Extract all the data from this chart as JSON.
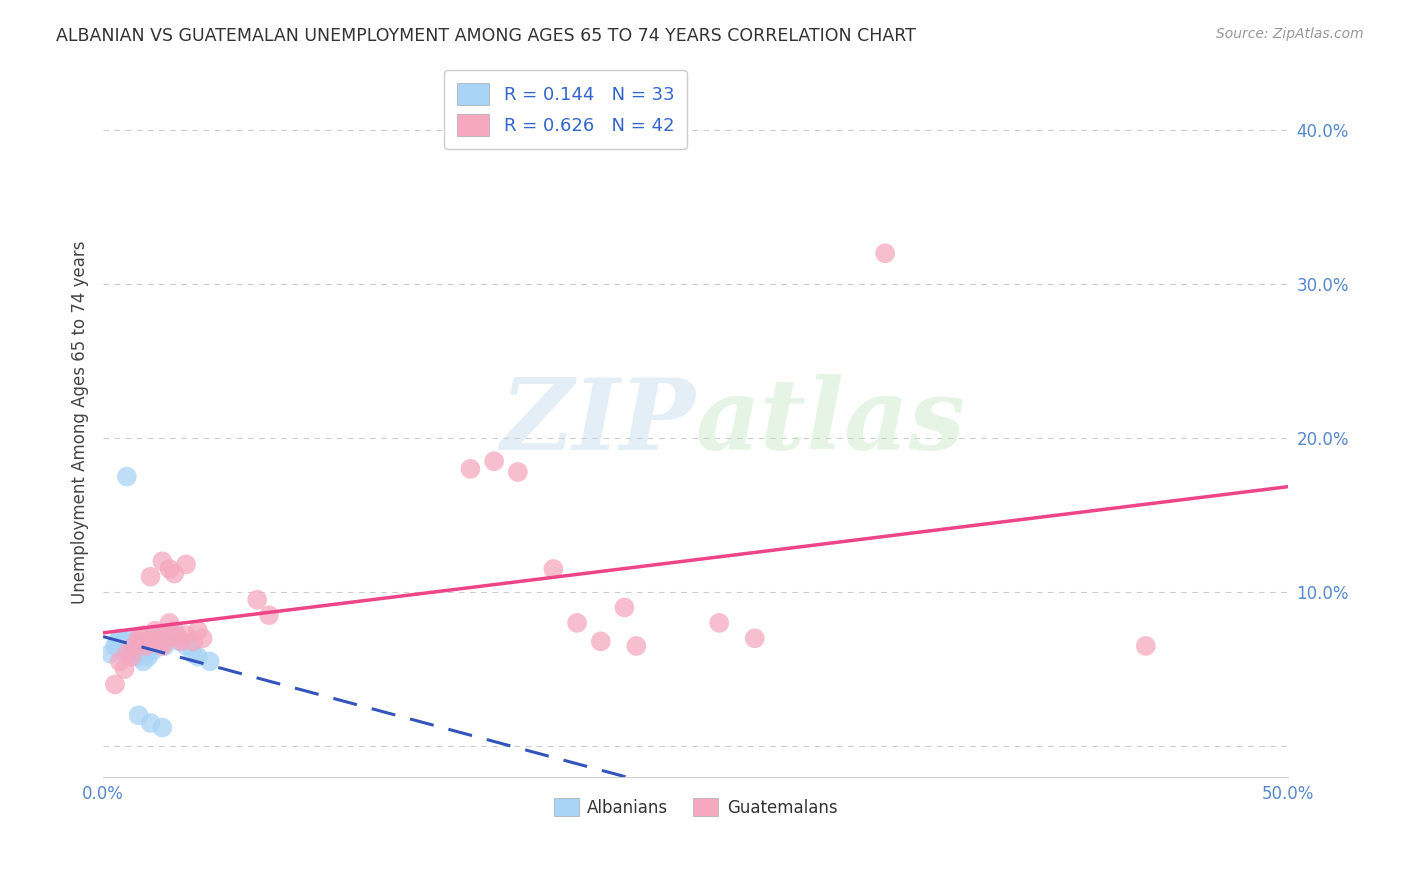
{
  "title": "ALBANIAN VS GUATEMALAN UNEMPLOYMENT AMONG AGES 65 TO 74 YEARS CORRELATION CHART",
  "source": "Source: ZipAtlas.com",
  "ylabel": "Unemployment Among Ages 65 to 74 years",
  "xlim": [
    0.0,
    0.5
  ],
  "ylim": [
    -0.02,
    0.44
  ],
  "xticks": [
    0.0,
    0.1,
    0.2,
    0.3,
    0.4,
    0.5
  ],
  "yticks": [
    0.0,
    0.1,
    0.2,
    0.3,
    0.4
  ],
  "xticklabels": [
    "0.0%",
    "",
    "",
    "",
    "",
    "50.0%"
  ],
  "yticklabels_right": [
    "",
    "10.0%",
    "20.0%",
    "30.0%",
    "40.0%"
  ],
  "albanian_color": "#a8d4f5",
  "guatemalan_color": "#f5a8c0",
  "albanian_line_color": "#3355bb",
  "guatemalan_line_color": "#ee4488",
  "albanian_R": 0.144,
  "albanian_N": 33,
  "guatemalan_R": 0.626,
  "guatemalan_N": 42,
  "background_color": "#ffffff",
  "grid_color": "#cccccc",
  "watermark_zip": "ZIP",
  "watermark_atlas": "atlas",
  "legend_label_albanian": "Albanians",
  "legend_label_guatemalan": "Guatemalans",
  "albanian_points": [
    [
      0.003,
      0.06
    ],
    [
      0.005,
      0.065
    ],
    [
      0.006,
      0.068
    ],
    [
      0.007,
      0.07
    ],
    [
      0.008,
      0.068
    ],
    [
      0.009,
      0.065
    ],
    [
      0.01,
      0.062
    ],
    [
      0.011,
      0.07
    ],
    [
      0.012,
      0.065
    ],
    [
      0.013,
      0.068
    ],
    [
      0.014,
      0.06
    ],
    [
      0.015,
      0.058
    ],
    [
      0.016,
      0.062
    ],
    [
      0.017,
      0.055
    ],
    [
      0.018,
      0.06
    ],
    [
      0.019,
      0.058
    ],
    [
      0.02,
      0.065
    ],
    [
      0.021,
      0.062
    ],
    [
      0.022,
      0.07
    ],
    [
      0.023,
      0.068
    ],
    [
      0.024,
      0.072
    ],
    [
      0.025,
      0.068
    ],
    [
      0.026,
      0.065
    ],
    [
      0.03,
      0.072
    ],
    [
      0.032,
      0.068
    ],
    [
      0.035,
      0.065
    ],
    [
      0.038,
      0.06
    ],
    [
      0.04,
      0.058
    ],
    [
      0.045,
      0.055
    ],
    [
      0.01,
      0.175
    ],
    [
      0.015,
      0.02
    ],
    [
      0.02,
      0.015
    ],
    [
      0.025,
      0.012
    ]
  ],
  "guatemalan_points": [
    [
      0.005,
      0.04
    ],
    [
      0.007,
      0.055
    ],
    [
      0.009,
      0.05
    ],
    [
      0.01,
      0.06
    ],
    [
      0.012,
      0.058
    ],
    [
      0.013,
      0.065
    ],
    [
      0.015,
      0.07
    ],
    [
      0.016,
      0.068
    ],
    [
      0.017,
      0.072
    ],
    [
      0.018,
      0.065
    ],
    [
      0.02,
      0.068
    ],
    [
      0.022,
      0.075
    ],
    [
      0.023,
      0.07
    ],
    [
      0.025,
      0.065
    ],
    [
      0.026,
      0.068
    ],
    [
      0.028,
      0.08
    ],
    [
      0.03,
      0.075
    ],
    [
      0.032,
      0.07
    ],
    [
      0.033,
      0.068
    ],
    [
      0.035,
      0.072
    ],
    [
      0.038,
      0.068
    ],
    [
      0.04,
      0.075
    ],
    [
      0.042,
      0.07
    ],
    [
      0.02,
      0.11
    ],
    [
      0.025,
      0.12
    ],
    [
      0.028,
      0.115
    ],
    [
      0.03,
      0.112
    ],
    [
      0.035,
      0.118
    ],
    [
      0.065,
      0.095
    ],
    [
      0.07,
      0.085
    ],
    [
      0.155,
      0.18
    ],
    [
      0.165,
      0.185
    ],
    [
      0.175,
      0.178
    ],
    [
      0.19,
      0.115
    ],
    [
      0.2,
      0.08
    ],
    [
      0.21,
      0.068
    ],
    [
      0.22,
      0.09
    ],
    [
      0.225,
      0.065
    ],
    [
      0.26,
      0.08
    ],
    [
      0.275,
      0.07
    ],
    [
      0.33,
      0.32
    ],
    [
      0.44,
      0.065
    ]
  ]
}
